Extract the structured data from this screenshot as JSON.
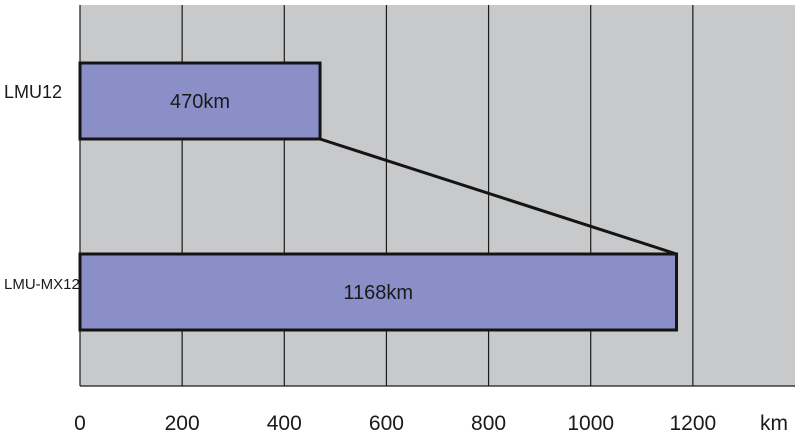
{
  "chart_data": {
    "type": "bar",
    "orientation": "horizontal",
    "categories": [
      "LMU12",
      "LMU-MX12"
    ],
    "values": [
      470,
      1168
    ],
    "data_labels": [
      "470km",
      "1168km"
    ],
    "x_ticks": [
      0,
      200,
      400,
      600,
      800,
      1000,
      1200
    ],
    "xlim": [
      0,
      1400
    ],
    "x_unit": "km",
    "grid": true,
    "colors": {
      "plot_background": "#c8c9cb",
      "bar_fill": "#8a8fc8",
      "bar_stroke": "#141414",
      "grid": "#1a1a1a"
    }
  }
}
